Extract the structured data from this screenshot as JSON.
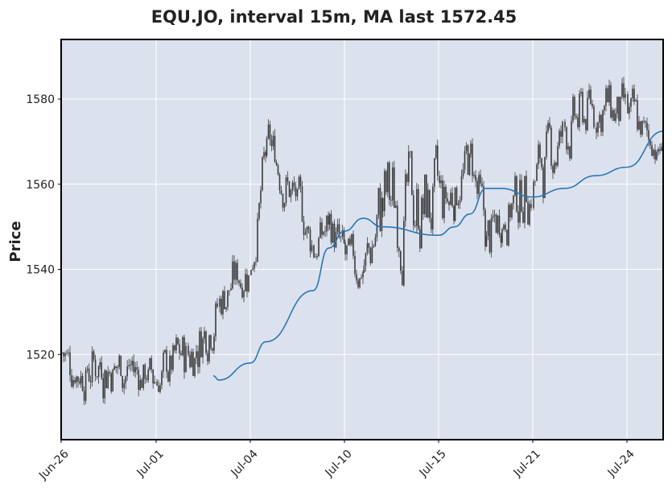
{
  "chart_data": {
    "type": "candlestick",
    "title": "EQU.JO, interval 15m, MA last 1572.45",
    "xlabel": "",
    "ylabel": "Price",
    "ylim": [
      1500,
      1594
    ],
    "y_ticks": [
      1520,
      1540,
      1560,
      1580
    ],
    "x_ticks": [
      "Jun-26",
      "Jul-01",
      "Jul-04",
      "Jul-10",
      "Jul-15",
      "Jul-21",
      "Jul-24"
    ],
    "grid": true,
    "legend": "none",
    "colors": {
      "background": "#dce1ee",
      "grid": "#ffffff",
      "candle": "#3c3c3c",
      "moving_average": "#2a78b4",
      "frame": "#000000"
    },
    "series": [
      {
        "kind": "price_envelope",
        "x": [
          "Jun-26",
          "Jun-27",
          "Jun-28",
          "Jul-01",
          "Jul-02",
          "Jul-03",
          "Jul-04",
          "Jul-05",
          "Jul-08",
          "Jul-09",
          "Jul-10",
          "Jul-11",
          "Jul-12",
          "Jul-15",
          "Jul-16",
          "Jul-17",
          "Jul-18",
          "Jul-19",
          "Jul-21",
          "Jul-22",
          "Jul-23",
          "Jul-24",
          "Jul-25"
        ],
        "low": [
          1508,
          1506,
          1505,
          1506,
          1505,
          1522,
          1530,
          1560,
          1535,
          1540,
          1530,
          1531,
          1532,
          1533,
          1548,
          1555,
          1530,
          1542,
          1545,
          1560,
          1565,
          1563,
          1563
        ],
        "high": [
          1533,
          1525,
          1532,
          1523,
          1535,
          1544,
          1555,
          1580,
          1556,
          1561,
          1552,
          1549,
          1579,
          1575,
          1570,
          1578,
          1560,
          1564,
          1578,
          1585,
          1593,
          1588,
          1570
        ]
      },
      {
        "kind": "moving_average",
        "x": [
          "Jul-02",
          "Jul-03",
          "Jul-04",
          "Jul-05",
          "Jul-08",
          "Jul-09",
          "Jul-10",
          "Jul-11",
          "Jul-12",
          "Jul-15",
          "Jul-16",
          "Jul-17",
          "Jul-18",
          "Jul-19",
          "Jul-21",
          "Jul-22",
          "Jul-23",
          "Jul-24",
          "Jul-25"
        ],
        "values": [
          1515,
          1514,
          1518,
          1523,
          1535,
          1545,
          1549,
          1552,
          1550,
          1548,
          1550,
          1553,
          1559,
          1559,
          1557,
          1559,
          1562,
          1564,
          1572.45
        ]
      }
    ]
  }
}
